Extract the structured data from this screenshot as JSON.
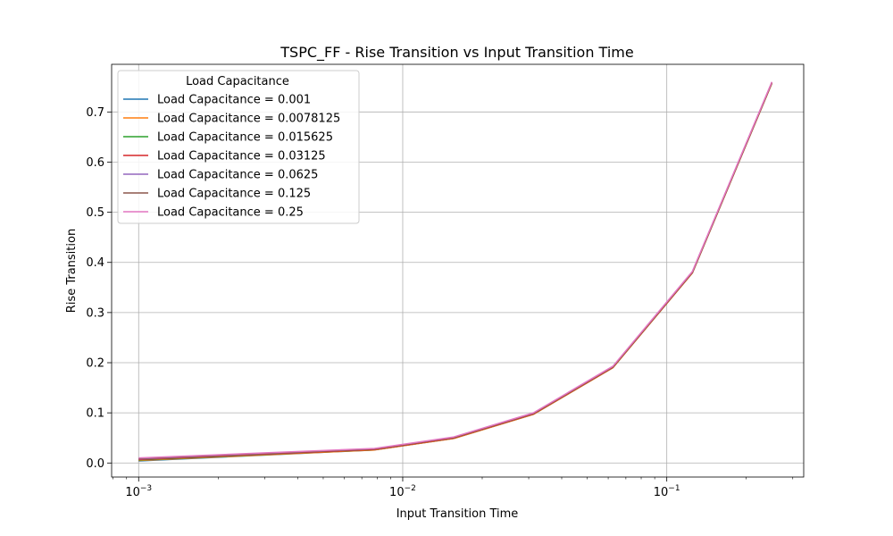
{
  "chart_data": {
    "type": "line",
    "title": "TSPC_FF - Rise Transition vs Input Transition Time",
    "xlabel": "Input Transition Time",
    "ylabel": "Rise Transition",
    "x_scale": "log",
    "xlim": [
      0.00079,
      0.33
    ],
    "ylim": [
      -0.028,
      0.795
    ],
    "x_ticks": [
      {
        "value": 0.001,
        "base": "10",
        "exp": "−3"
      },
      {
        "value": 0.01,
        "base": "10",
        "exp": "−2"
      },
      {
        "value": 0.1,
        "base": "10",
        "exp": "−1"
      }
    ],
    "y_ticks": [
      0.0,
      0.1,
      0.2,
      0.3,
      0.4,
      0.5,
      0.6,
      0.7
    ],
    "grid": true,
    "legend": {
      "title": "Load Capacitance",
      "position": "top-left"
    },
    "x": [
      0.001,
      0.0078125,
      0.015625,
      0.03125,
      0.0625,
      0.125,
      0.25
    ],
    "series": [
      {
        "name": "Load Capacitance = 0.001",
        "color": "#1f77b4",
        "values": [
          0.004,
          0.026,
          0.049,
          0.097,
          0.19,
          0.379,
          0.757
        ]
      },
      {
        "name": "Load Capacitance = 0.0078125",
        "color": "#ff7f0e",
        "values": [
          0.005,
          0.026,
          0.049,
          0.097,
          0.19,
          0.379,
          0.757
        ]
      },
      {
        "name": "Load Capacitance = 0.015625",
        "color": "#2ca02c",
        "values": [
          0.006,
          0.027,
          0.05,
          0.098,
          0.191,
          0.38,
          0.758
        ]
      },
      {
        "name": "Load Capacitance = 0.03125",
        "color": "#d62728",
        "values": [
          0.007,
          0.027,
          0.05,
          0.098,
          0.191,
          0.38,
          0.758
        ]
      },
      {
        "name": "Load Capacitance = 0.0625",
        "color": "#9467bd",
        "values": [
          0.008,
          0.028,
          0.051,
          0.099,
          0.192,
          0.381,
          0.759
        ]
      },
      {
        "name": "Load Capacitance = 0.125",
        "color": "#8c564b",
        "values": [
          0.009,
          0.028,
          0.051,
          0.099,
          0.192,
          0.381,
          0.759
        ]
      },
      {
        "name": "Load Capacitance = 0.25",
        "color": "#e377c2",
        "values": [
          0.01,
          0.029,
          0.052,
          0.1,
          0.193,
          0.382,
          0.76
        ]
      }
    ]
  }
}
